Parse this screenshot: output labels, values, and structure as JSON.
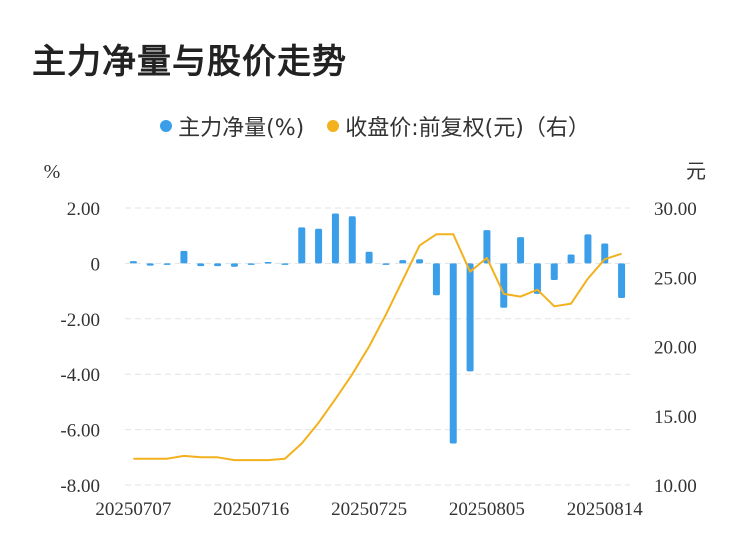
{
  "title": "主力净量与股价走势",
  "colors": {
    "bar": "#3a9ee8",
    "line": "#f2b11d",
    "grid": "#e3e3e3",
    "text": "#333333"
  },
  "chart_data": {
    "type": "bar+line",
    "legend_position": "top",
    "grid": true,
    "left_axis": {
      "label": "%",
      "ylim": [
        -8,
        2
      ],
      "ticks": [
        2,
        0,
        -2,
        -4,
        -6,
        -8
      ],
      "tick_labels": [
        "2.00",
        "0",
        "-2.00",
        "-4.00",
        "-6.00",
        "-8.00"
      ]
    },
    "right_axis": {
      "label": "元",
      "ylim": [
        10,
        30
      ],
      "ticks": [
        30,
        25,
        20,
        15,
        10
      ],
      "tick_labels": [
        "30.00",
        "25.00",
        "20.00",
        "15.00",
        "10.00"
      ]
    },
    "x_tick_labels": [
      "20250707",
      "20250716",
      "20250725",
      "20250805",
      "20250814"
    ],
    "x_tick_index": [
      0,
      7,
      14,
      21,
      28
    ],
    "series": [
      {
        "name": "主力净量(%)",
        "type": "bar",
        "axis": "left",
        "values": [
          0.08,
          -0.08,
          -0.05,
          0.45,
          -0.1,
          -0.1,
          -0.12,
          -0.03,
          0.05,
          -0.03,
          1.3,
          1.25,
          1.8,
          1.7,
          0.42,
          -0.02,
          0.12,
          0.15,
          -1.15,
          -6.5,
          -3.9,
          1.2,
          -1.6,
          0.95,
          -1.1,
          -0.6,
          0.32,
          1.05,
          0.72,
          -1.25
        ]
      },
      {
        "name": "收盘价:前复权(元)（右）",
        "type": "line",
        "axis": "right",
        "values": [
          11.9,
          11.9,
          11.9,
          12.1,
          12.0,
          12.0,
          11.8,
          11.8,
          11.8,
          11.9,
          13.0,
          14.5,
          16.2,
          18.0,
          20.0,
          22.3,
          24.8,
          27.3,
          28.1,
          28.1,
          25.4,
          26.4,
          23.8,
          23.6,
          24.1,
          22.9,
          23.1,
          24.9,
          26.3,
          26.7
        ]
      }
    ]
  }
}
